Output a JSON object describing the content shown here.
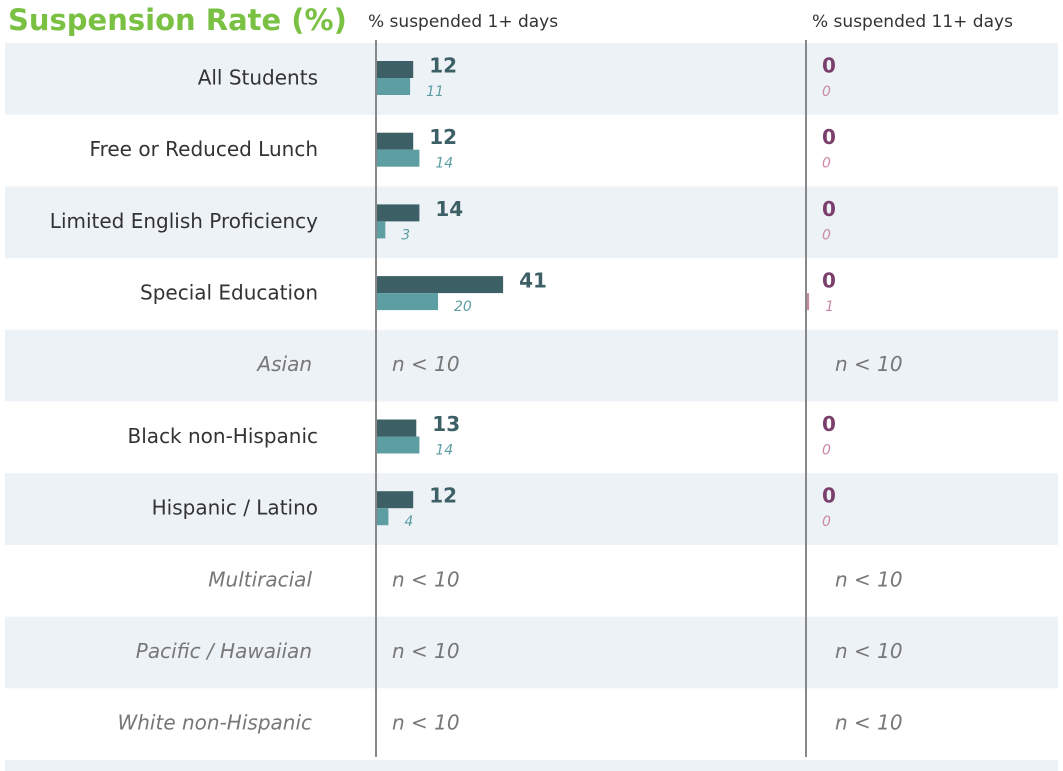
{
  "title": "Suspension Rate (%)",
  "chart_data": [
    {
      "type": "bar",
      "orientation": "horizontal",
      "title": "% suspended 1+ days",
      "categories": [
        "All Students",
        "Free or Reduced Lunch",
        "Limited English Proficiency",
        "Special Education",
        "Asian",
        "Black non-Hispanic",
        "Hispanic / Latino",
        "Multiracial",
        "Pacific / Hawaiian",
        "White non-Hispanic"
      ],
      "xlim": [
        0,
        100
      ],
      "missing_label": "n < 10",
      "series": [
        {
          "color": "#3d6066",
          "values": [
            12,
            12,
            14,
            41,
            null,
            13,
            12,
            null,
            null,
            null
          ]
        },
        {
          "color": "#5d9ea3",
          "values": [
            11,
            14,
            3,
            20,
            null,
            14,
            4,
            null,
            null,
            null
          ]
        }
      ]
    },
    {
      "type": "bar",
      "orientation": "horizontal",
      "title": "% suspended 11+ days",
      "xlim": [
        0,
        100
      ],
      "missing_label": "n < 10",
      "series": [
        {
          "color": "#7b3f6e",
          "values": [
            0,
            0,
            0,
            0,
            null,
            0,
            0,
            null,
            null,
            null
          ]
        },
        {
          "color": "#c98aa8",
          "values": [
            0,
            0,
            0,
            1,
            null,
            0,
            0,
            null,
            null,
            null
          ]
        }
      ]
    }
  ]
}
